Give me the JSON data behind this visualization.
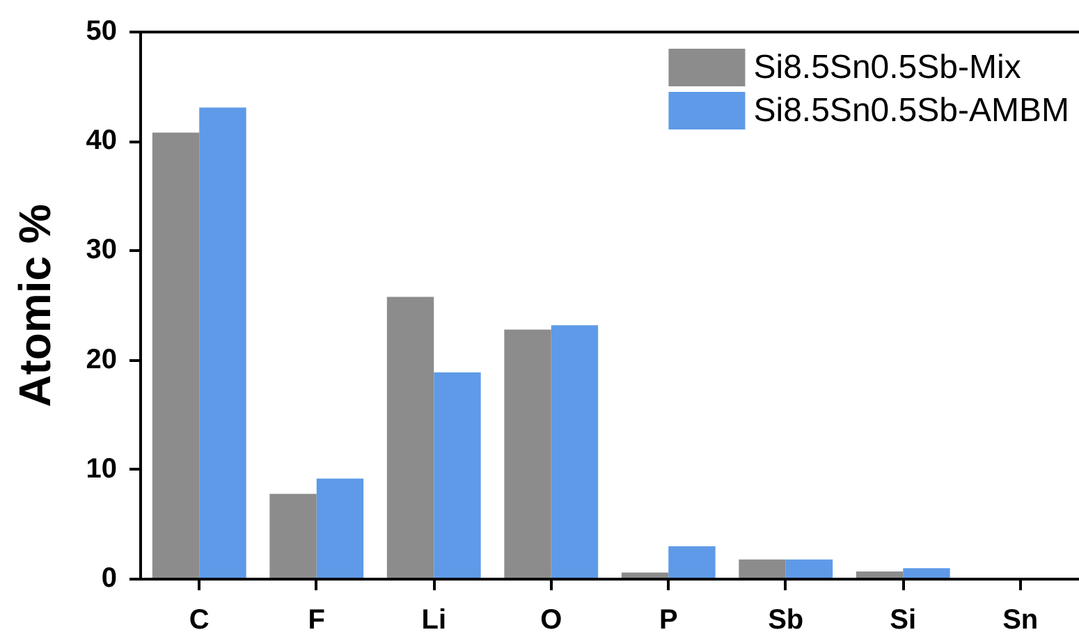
{
  "chart_data": {
    "type": "bar",
    "ylabel": "Atomic %",
    "categories": [
      "C",
      "F",
      "Li",
      "O",
      "P",
      "Sb",
      "Si",
      "Sn"
    ],
    "series": [
      {
        "name": "Si8.5Sn0.5Sb-Mix",
        "color": "#8c8c8c",
        "values": [
          40.8,
          7.8,
          25.8,
          22.8,
          0.6,
          1.8,
          0.7,
          0
        ]
      },
      {
        "name": "Si8.5Sn0.5Sb-AMBM",
        "color": "#5e9ae8",
        "values": [
          43.1,
          9.2,
          18.9,
          23.2,
          3.0,
          1.8,
          1.0,
          0
        ]
      }
    ],
    "ylim": [
      0,
      50
    ],
    "yticks": [
      0,
      10,
      20,
      30,
      40,
      50
    ],
    "grid": false,
    "legend": "top right"
  }
}
